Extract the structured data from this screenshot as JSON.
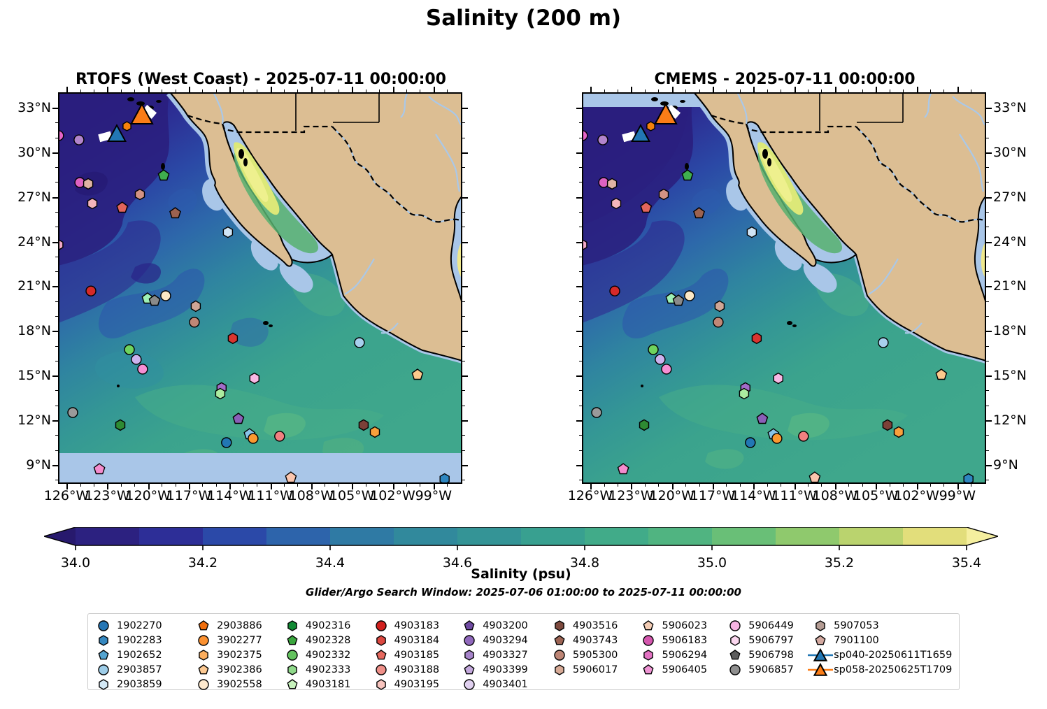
{
  "title": "Salinity (200 m)",
  "subtitle": "Glider/Argo Search Window: 2025-07-06 01:00:00 to 2025-07-11 00:00:00",
  "panels": [
    {
      "id": "rtofs",
      "title": "RTOFS (West Coast) - 2025-07-11 00:00:00"
    },
    {
      "id": "cmems",
      "title": "CMEMS - 2025-07-11 00:00:00"
    }
  ],
  "colors": {
    "land": "#dcbe93",
    "no_data_shelf": "#a9c6e8",
    "river": "#aac8e8",
    "coastline": "#000000",
    "glider_sp040": "#2277b4",
    "glider_sp058": "#fb7d17"
  },
  "chart_data": {
    "type": "heatmap",
    "title": "Salinity (200 m)",
    "panels": [
      "RTOFS (West Coast) - 2025-07-11 00:00:00",
      "CMEMS - 2025-07-11 00:00:00"
    ],
    "variable": "Salinity",
    "depth_label": "200 m",
    "lon_axis": {
      "ticks_deg_w": [
        126,
        123,
        120,
        117,
        114,
        111,
        108,
        105,
        102,
        99
      ],
      "labels": [
        "126°W",
        "123°W",
        "120°W",
        "117°W",
        "114°W",
        "111°W",
        "108°W",
        "105°W",
        "102°W",
        "99°W"
      ],
      "range_deg_w": [
        126.62,
        96.88
      ]
    },
    "lat_axis": {
      "ticks_deg_n": [
        33,
        30,
        27,
        24,
        21,
        18,
        15,
        12,
        9
      ],
      "labels": [
        "33°N",
        "30°N",
        "27°N",
        "24°N",
        "21°N",
        "18°N",
        "15°N",
        "12°N",
        "9°N"
      ],
      "range_deg_n": [
        7.72,
        34.03
      ]
    },
    "colorbar": {
      "label": "Salinity (psu)",
      "min": 34.0,
      "max": 35.4,
      "tick_labels": [
        "34.0",
        "34.2",
        "34.4",
        "34.6",
        "34.8",
        "35.0",
        "35.2",
        "35.4"
      ],
      "segment_colors": [
        "#2c2180",
        "#2d2e97",
        "#2b49a8",
        "#2d64ab",
        "#2f7aa4",
        "#31899c",
        "#349496",
        "#38a090",
        "#41ab89",
        "#50b481",
        "#69bf77",
        "#8fc96d",
        "#bad36e",
        "#e2de7b"
      ],
      "under_color": "#27196d",
      "over_color": "#f5ef9f"
    },
    "markers": [
      {
        "lon_w": 126.58,
        "lat_n": 31.12,
        "shape": "circle",
        "color": "#e664c8",
        "r": 7
      },
      {
        "lon_w": 125.08,
        "lat_n": 30.83,
        "shape": "circle",
        "color": "#b284cc",
        "r": 7
      },
      {
        "lon_w": 125.02,
        "lat_n": 27.97,
        "shape": "circle",
        "color": "#dd62c2",
        "r": 7
      },
      {
        "lon_w": 124.4,
        "lat_n": 27.88,
        "shape": "hexagon",
        "color": "#dfb3a3",
        "r": 7.5
      },
      {
        "lon_w": 118.85,
        "lat_n": 28.44,
        "shape": "pentagon",
        "color": "#3fae4e",
        "r": 8
      },
      {
        "lon_w": 120.6,
        "lat_n": 27.17,
        "shape": "hexagon",
        "color": "#d29384",
        "r": 7.5
      },
      {
        "lon_w": 124.1,
        "lat_n": 26.56,
        "shape": "hexagon",
        "color": "#f5b5bb",
        "r": 7.5
      },
      {
        "lon_w": 121.9,
        "lat_n": 26.28,
        "shape": "pentagon",
        "color": "#e2655c",
        "r": 8
      },
      {
        "lon_w": 118.0,
        "lat_n": 25.9,
        "shape": "pentagon",
        "color": "#9c6250",
        "r": 8
      },
      {
        "lon_w": 126.6,
        "lat_n": 23.78,
        "shape": "hexagon",
        "color": "#f0a8c8",
        "r": 7.5
      },
      {
        "lon_w": 114.12,
        "lat_n": 24.63,
        "shape": "hexagon",
        "color": "#cfe4f5",
        "r": 7.5
      },
      {
        "lon_w": 124.2,
        "lat_n": 20.68,
        "shape": "circle",
        "color": "#d62a28",
        "r": 7
      },
      {
        "lon_w": 120.04,
        "lat_n": 20.17,
        "shape": "pentagon",
        "color": "#9ef0b6",
        "r": 8
      },
      {
        "lon_w": 119.52,
        "lat_n": 20.03,
        "shape": "pentagon",
        "color": "#8a8a8a",
        "r": 8
      },
      {
        "lon_w": 118.7,
        "lat_n": 20.36,
        "shape": "circle",
        "color": "#fbe8c6",
        "r": 7
      },
      {
        "lon_w": 116.49,
        "lat_n": 19.66,
        "shape": "hexagon",
        "color": "#cfa696",
        "r": 7.5
      },
      {
        "lon_w": 116.59,
        "lat_n": 18.58,
        "shape": "circle",
        "color": "#c08776",
        "r": 7
      },
      {
        "lon_w": 113.76,
        "lat_n": 17.5,
        "shape": "hexagon",
        "color": "#d93430",
        "r": 7.5
      },
      {
        "lon_w": 121.37,
        "lat_n": 16.74,
        "shape": "circle",
        "color": "#6ed35e",
        "r": 7
      },
      {
        "lon_w": 120.86,
        "lat_n": 16.08,
        "shape": "circle",
        "color": "#cdb2ee",
        "r": 7
      },
      {
        "lon_w": 120.4,
        "lat_n": 15.43,
        "shape": "circle",
        "color": "#f58fd4",
        "r": 7
      },
      {
        "lon_w": 112.17,
        "lat_n": 14.81,
        "shape": "hexagon",
        "color": "#f8b8e4",
        "r": 7.5
      },
      {
        "lon_w": 114.59,
        "lat_n": 14.16,
        "shape": "hexagon",
        "color": "#a16cc8",
        "r": 7.5
      },
      {
        "lon_w": 114.69,
        "lat_n": 13.78,
        "shape": "hexagon",
        "color": "#abeba0",
        "r": 7.5
      },
      {
        "lon_w": 125.54,
        "lat_n": 12.51,
        "shape": "circle",
        "color": "#9a9a9a",
        "r": 7
      },
      {
        "lon_w": 122.04,
        "lat_n": 11.67,
        "shape": "hexagon",
        "color": "#2e8b33",
        "r": 7.5
      },
      {
        "lon_w": 113.35,
        "lat_n": 12.09,
        "shape": "pentagon",
        "color": "#8a5fb8",
        "r": 8
      },
      {
        "lon_w": 112.53,
        "lat_n": 11.05,
        "shape": "pentagon",
        "color": "#88c4e8",
        "r": 8
      },
      {
        "lon_w": 112.27,
        "lat_n": 10.77,
        "shape": "circle",
        "color": "#fb9930",
        "r": 7
      },
      {
        "lon_w": 114.23,
        "lat_n": 10.49,
        "shape": "circle",
        "color": "#2277b4",
        "r": 7
      },
      {
        "lon_w": 123.58,
        "lat_n": 8.7,
        "shape": "pentagon",
        "color": "#f48cce",
        "r": 8
      },
      {
        "lon_w": 104.45,
        "lat_n": 17.21,
        "shape": "circle",
        "color": "#a8d0ee",
        "r": 7
      },
      {
        "lon_w": 100.18,
        "lat_n": 15.05,
        "shape": "pentagon",
        "color": "#fcc98c",
        "r": 8
      },
      {
        "lon_w": 104.14,
        "lat_n": 11.67,
        "shape": "hexagon",
        "color": "#7c4038",
        "r": 7.5
      },
      {
        "lon_w": 103.31,
        "lat_n": 11.2,
        "shape": "hexagon",
        "color": "#f9a03c",
        "r": 7.5
      },
      {
        "lon_w": 110.32,
        "lat_n": 10.92,
        "shape": "circle",
        "color": "#f18080",
        "r": 7
      },
      {
        "lon_w": 109.49,
        "lat_n": 8.14,
        "shape": "pentagon",
        "color": "#fbc6ae",
        "r": 8
      },
      {
        "lon_w": 98.18,
        "lat_n": 8.05,
        "shape": "hexagon",
        "color": "#2e86c0",
        "r": 7.5
      },
      {
        "lon_w": 121.55,
        "lat_n": 31.75,
        "shape": "hexagon",
        "color": "#f5820b",
        "r": 6.5
      },
      {
        "lon_w": 119.9,
        "lat_n": 32.72,
        "shape": "patch",
        "color": "#ffffff",
        "r": 9,
        "rot": 40
      },
      {
        "lon_w": 123.15,
        "lat_n": 31.05,
        "shape": "patch",
        "color": "#ffffff",
        "r": 9,
        "rot": -15
      },
      {
        "lon_w": 120.45,
        "lat_n": 32.48,
        "shape": "triangle",
        "color": "#fb7d17",
        "r": 16,
        "name": "sp058"
      },
      {
        "lon_w": 122.3,
        "lat_n": 31.2,
        "shape": "triangle",
        "color": "#2277b4",
        "r": 13,
        "name": "sp040"
      }
    ],
    "legend_columns": [
      [
        {
          "shape": "circle",
          "color": "#2676b4",
          "label": "1902270"
        },
        {
          "shape": "hexagon",
          "color": "#3588c0",
          "label": "1902283"
        },
        {
          "shape": "pentagon",
          "color": "#55a4d0",
          "label": "1902652"
        },
        {
          "shape": "circle",
          "color": "#9ecde8",
          "label": "2903857"
        },
        {
          "shape": "hexagon",
          "color": "#d3e8f5",
          "label": "2903859"
        }
      ],
      [
        {
          "shape": "pentagon",
          "color": "#f06e0d",
          "label": "2903886"
        },
        {
          "shape": "circle",
          "color": "#fb9130",
          "label": "3902277"
        },
        {
          "shape": "hexagon",
          "color": "#fcae5e",
          "label": "3902375"
        },
        {
          "shape": "pentagon",
          "color": "#fcc992",
          "label": "3902386"
        },
        {
          "shape": "circle",
          "color": "#fde9ce",
          "label": "3902558"
        }
      ],
      [
        {
          "shape": "hexagon",
          "color": "#118a34",
          "label": "4902316"
        },
        {
          "shape": "pentagon",
          "color": "#3aa63e",
          "label": "4902328"
        },
        {
          "shape": "circle",
          "color": "#63c25e",
          "label": "4902332"
        },
        {
          "shape": "hexagon",
          "color": "#8fd98a",
          "label": "4902333"
        },
        {
          "shape": "pentagon",
          "color": "#c7f2bc",
          "label": "4903181"
        }
      ],
      [
        {
          "shape": "circle",
          "color": "#d1201e",
          "label": "4903183"
        },
        {
          "shape": "hexagon",
          "color": "#dc4840",
          "label": "4903184"
        },
        {
          "shape": "pentagon",
          "color": "#e5685e",
          "label": "4903185"
        },
        {
          "shape": "circle",
          "color": "#ef9089",
          "label": "4903188"
        },
        {
          "shape": "hexagon",
          "color": "#f8c4be",
          "label": "4903195"
        }
      ],
      [
        {
          "shape": "pentagon",
          "color": "#6f4aa2",
          "label": "4903200"
        },
        {
          "shape": "circle",
          "color": "#9068bc",
          "label": "4903294"
        },
        {
          "shape": "hexagon",
          "color": "#a684ca",
          "label": "4903327"
        },
        {
          "shape": "pentagon",
          "color": "#c3a8dc",
          "label": "4903399"
        },
        {
          "shape": "circle",
          "color": "#e0d0ef",
          "label": "4903401"
        }
      ],
      [
        {
          "shape": "hexagon",
          "color": "#7e4a3e",
          "label": "4903516"
        },
        {
          "shape": "pentagon",
          "color": "#9c6454",
          "label": "4903743"
        },
        {
          "shape": "circle",
          "color": "#bd8575",
          "label": "5905300"
        },
        {
          "shape": "hexagon",
          "color": "#d8ab97",
          "label": "5906017"
        }
      ],
      [
        {
          "shape": "pentagon",
          "color": "#f3ccb4",
          "label": "5906023"
        },
        {
          "shape": "circle",
          "color": "#d457ae",
          "label": "5906183"
        },
        {
          "shape": "hexagon",
          "color": "#e272c2",
          "label": "5906294"
        },
        {
          "shape": "pentagon",
          "color": "#ef94d4",
          "label": "5906405"
        }
      ],
      [
        {
          "shape": "circle",
          "color": "#f7b5e3",
          "label": "5906449"
        },
        {
          "shape": "hexagon",
          "color": "#fbd7ef",
          "label": "5906797"
        },
        {
          "shape": "pentagon",
          "color": "#5c5c5c",
          "label": "5906798"
        },
        {
          "shape": "circle",
          "color": "#8f8f8f",
          "label": "5906857"
        }
      ],
      [
        {
          "shape": "hexagon",
          "color": "#b49c94",
          "label": "5907053"
        },
        {
          "shape": "pentagon",
          "color": "#d3a9a0",
          "label": "7901100"
        },
        {
          "shape": "glider",
          "color": "#2277b4",
          "label": "sp040-20250611T1659"
        },
        {
          "shape": "glider",
          "color": "#fb7d17",
          "label": "sp058-20250625T1709"
        }
      ]
    ]
  }
}
